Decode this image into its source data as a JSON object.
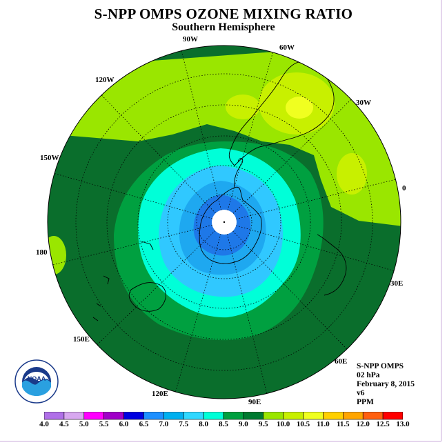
{
  "title": "S-NPP OMPS OZONE MIXING RATIO",
  "subtitle": "Southern Hemisphere",
  "longitude_labels": [
    "90W",
    "60W",
    "30W",
    "0",
    "30E",
    "60E",
    "90E",
    "120E",
    "150E",
    "180",
    "150W",
    "120W"
  ],
  "info": {
    "instrument": "S-NPP OMPS",
    "level": "02 hPa",
    "date": "February 8, 2015",
    "version": "v6",
    "units": "PPM"
  },
  "logo": {
    "text": "NOAA",
    "ring_text": "NATIONAL OCEANIC AND ATMOSPHERIC ADMINISTRATION · U.S. DEPARTMENT OF COMMERCE"
  },
  "colorbar": {
    "ticks": [
      "4.0",
      "4.5",
      "5.0",
      "5.5",
      "6.0",
      "6.5",
      "7.0",
      "7.5",
      "8.0",
      "8.5",
      "9.0",
      "9.5",
      "10.0",
      "10.5",
      "11.0",
      "11.5",
      "12.0",
      "12.5",
      "13.0"
    ],
    "colors": [
      "#b070e8",
      "#d8a8f0",
      "#ff00ff",
      "#a000c8",
      "#0000e0",
      "#1e90ff",
      "#00b0f0",
      "#30d8ff",
      "#00ffd8",
      "#00a040",
      "#007a30",
      "#9ae600",
      "#c8f000",
      "#f0ff20",
      "#ffd000",
      "#ffa500",
      "#ff6010",
      "#ff0000",
      "#804020"
    ]
  },
  "chart_data": {
    "type": "heatmap",
    "title": "S-NPP OMPS OZONE MIXING RATIO",
    "subtitle": "Southern Hemisphere",
    "projection": "polar stereographic (south pole centered)",
    "variable": "ozone mixing ratio",
    "units": "PPM",
    "level": "02 hPa",
    "date": "February 8, 2015",
    "scale_min": 4.0,
    "scale_max": 13.0,
    "scale_step": 0.5,
    "contour_levels_ppm": [
      6.5,
      7.0,
      7.5,
      8.0,
      8.5,
      9.0,
      9.5,
      10.0,
      10.5
    ],
    "regions": [
      {
        "range": "6.5-7.0",
        "location": "core over Antarctica"
      },
      {
        "range": "7.0-7.5",
        "location": "inner ring around pole"
      },
      {
        "range": "7.5-8.0",
        "location": "ring around pole"
      },
      {
        "range": "8.0-8.5",
        "location": "ring around pole"
      },
      {
        "range": "8.5-9.0",
        "location": "band at mid latitudes"
      },
      {
        "range": "9.0-9.5",
        "location": "outer mid latitudes"
      },
      {
        "range": "9.5-10.5",
        "location": "low latitudes near 60W-0"
      },
      {
        "range": "10.5-11.0",
        "location": "max near 60W over South America"
      }
    ]
  }
}
